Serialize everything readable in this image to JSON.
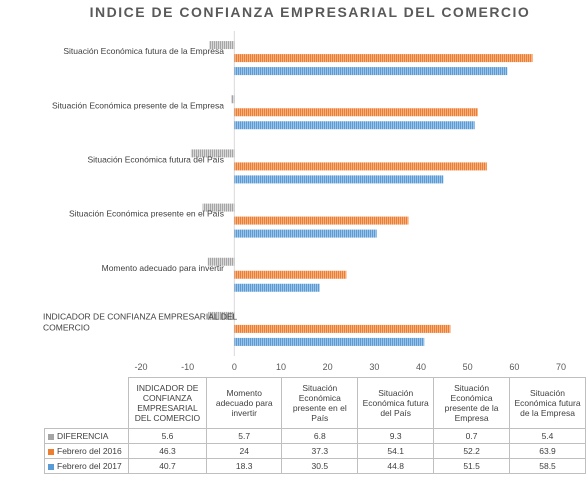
{
  "chart_data": {
    "type": "bar",
    "orientation": "horizontal",
    "title": "INDICE DE CONFIANZA EMPRESARIAL DEL COMERCIO",
    "categories": [
      "INDICADOR DE CONFIANZA EMPRESARIAL DEL COMERCIO",
      "Momento adecuado para invertir",
      "Situación Económica presente en el País",
      "Situación Económica futura del País",
      "Situación Económica presente de la Empresa",
      "Situación Económica futura de la Empresa"
    ],
    "series": [
      {
        "name": "DIFERENCIA",
        "values": [
          -5.6,
          -5.7,
          -6.8,
          -9.3,
          -0.7,
          -5.4
        ],
        "table_values": [
          "5.6",
          "5.7",
          "6.8",
          "9.3",
          "0.7",
          "5.4"
        ],
        "color": "#a5a5a5"
      },
      {
        "name": "Febrero del 2016",
        "values": [
          46.3,
          24,
          37.3,
          54.1,
          52.2,
          63.9
        ],
        "table_values": [
          "46.3",
          "24",
          "37.3",
          "54.1",
          "52.2",
          "63.9"
        ],
        "color": "#ed7d31"
      },
      {
        "name": "Febrero del 2017",
        "values": [
          40.7,
          18.3,
          30.5,
          44.8,
          51.5,
          58.5
        ],
        "table_values": [
          "40.7",
          "18.3",
          "30.5",
          "44.8",
          "51.5",
          "58.5"
        ],
        "color": "#5b9bd5"
      }
    ],
    "x_ticks": [
      "-20",
      "-10",
      "0",
      "10",
      "20",
      "30",
      "40",
      "50",
      "60",
      "70"
    ],
    "xlim": [
      -20,
      70
    ],
    "grid": false,
    "legend": "data table below chart",
    "table_headers": [
      "INDICADOR DE CONFIANZA EMPRESARIAL DEL COMERCIO",
      "Momento adecuado para invertir",
      "Situación Económica presente en el País",
      "Situación Económica futura del País",
      "Situación Económica presente de la Empresa",
      "Situación Económica futura de la Empresa"
    ]
  }
}
